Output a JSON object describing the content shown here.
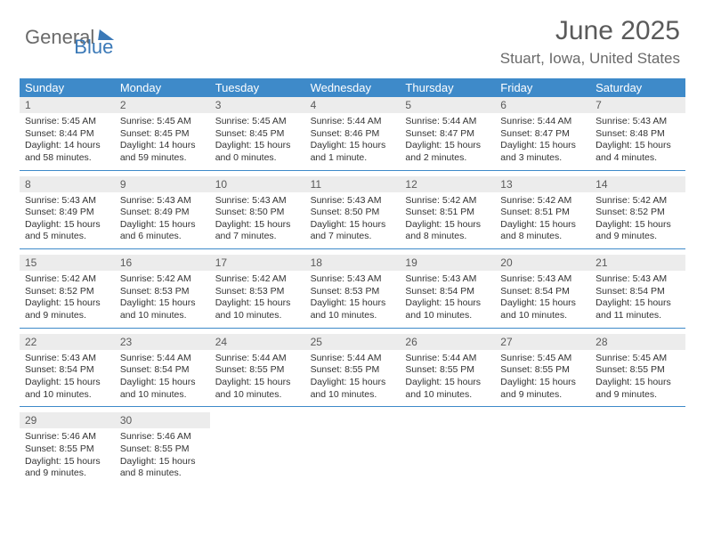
{
  "logo": {
    "general": "General",
    "blue": "Blue"
  },
  "title": "June 2025",
  "location": "Stuart, Iowa, United States",
  "weekdays": [
    "Sunday",
    "Monday",
    "Tuesday",
    "Wednesday",
    "Thursday",
    "Friday",
    "Saturday"
  ],
  "colors": {
    "header_blue": "#3e8ac9",
    "logo_blue": "#3b79b7",
    "text_gray": "#6a6a6a",
    "daynum_bg": "#ececec"
  },
  "weeks": [
    [
      {
        "n": "1",
        "sr": "5:45 AM",
        "ss": "8:44 PM",
        "dl": "14 hours and 58 minutes."
      },
      {
        "n": "2",
        "sr": "5:45 AM",
        "ss": "8:45 PM",
        "dl": "14 hours and 59 minutes."
      },
      {
        "n": "3",
        "sr": "5:45 AM",
        "ss": "8:45 PM",
        "dl": "15 hours and 0 minutes."
      },
      {
        "n": "4",
        "sr": "5:44 AM",
        "ss": "8:46 PM",
        "dl": "15 hours and 1 minute."
      },
      {
        "n": "5",
        "sr": "5:44 AM",
        "ss": "8:47 PM",
        "dl": "15 hours and 2 minutes."
      },
      {
        "n": "6",
        "sr": "5:44 AM",
        "ss": "8:47 PM",
        "dl": "15 hours and 3 minutes."
      },
      {
        "n": "7",
        "sr": "5:43 AM",
        "ss": "8:48 PM",
        "dl": "15 hours and 4 minutes."
      }
    ],
    [
      {
        "n": "8",
        "sr": "5:43 AM",
        "ss": "8:49 PM",
        "dl": "15 hours and 5 minutes."
      },
      {
        "n": "9",
        "sr": "5:43 AM",
        "ss": "8:49 PM",
        "dl": "15 hours and 6 minutes."
      },
      {
        "n": "10",
        "sr": "5:43 AM",
        "ss": "8:50 PM",
        "dl": "15 hours and 7 minutes."
      },
      {
        "n": "11",
        "sr": "5:43 AM",
        "ss": "8:50 PM",
        "dl": "15 hours and 7 minutes."
      },
      {
        "n": "12",
        "sr": "5:42 AM",
        "ss": "8:51 PM",
        "dl": "15 hours and 8 minutes."
      },
      {
        "n": "13",
        "sr": "5:42 AM",
        "ss": "8:51 PM",
        "dl": "15 hours and 8 minutes."
      },
      {
        "n": "14",
        "sr": "5:42 AM",
        "ss": "8:52 PM",
        "dl": "15 hours and 9 minutes."
      }
    ],
    [
      {
        "n": "15",
        "sr": "5:42 AM",
        "ss": "8:52 PM",
        "dl": "15 hours and 9 minutes."
      },
      {
        "n": "16",
        "sr": "5:42 AM",
        "ss": "8:53 PM",
        "dl": "15 hours and 10 minutes."
      },
      {
        "n": "17",
        "sr": "5:42 AM",
        "ss": "8:53 PM",
        "dl": "15 hours and 10 minutes."
      },
      {
        "n": "18",
        "sr": "5:43 AM",
        "ss": "8:53 PM",
        "dl": "15 hours and 10 minutes."
      },
      {
        "n": "19",
        "sr": "5:43 AM",
        "ss": "8:54 PM",
        "dl": "15 hours and 10 minutes."
      },
      {
        "n": "20",
        "sr": "5:43 AM",
        "ss": "8:54 PM",
        "dl": "15 hours and 10 minutes."
      },
      {
        "n": "21",
        "sr": "5:43 AM",
        "ss": "8:54 PM",
        "dl": "15 hours and 11 minutes."
      }
    ],
    [
      {
        "n": "22",
        "sr": "5:43 AM",
        "ss": "8:54 PM",
        "dl": "15 hours and 10 minutes."
      },
      {
        "n": "23",
        "sr": "5:44 AM",
        "ss": "8:54 PM",
        "dl": "15 hours and 10 minutes."
      },
      {
        "n": "24",
        "sr": "5:44 AM",
        "ss": "8:55 PM",
        "dl": "15 hours and 10 minutes."
      },
      {
        "n": "25",
        "sr": "5:44 AM",
        "ss": "8:55 PM",
        "dl": "15 hours and 10 minutes."
      },
      {
        "n": "26",
        "sr": "5:44 AM",
        "ss": "8:55 PM",
        "dl": "15 hours and 10 minutes."
      },
      {
        "n": "27",
        "sr": "5:45 AM",
        "ss": "8:55 PM",
        "dl": "15 hours and 9 minutes."
      },
      {
        "n": "28",
        "sr": "5:45 AM",
        "ss": "8:55 PM",
        "dl": "15 hours and 9 minutes."
      }
    ],
    [
      {
        "n": "29",
        "sr": "5:46 AM",
        "ss": "8:55 PM",
        "dl": "15 hours and 9 minutes."
      },
      {
        "n": "30",
        "sr": "5:46 AM",
        "ss": "8:55 PM",
        "dl": "15 hours and 8 minutes."
      },
      null,
      null,
      null,
      null,
      null
    ]
  ]
}
